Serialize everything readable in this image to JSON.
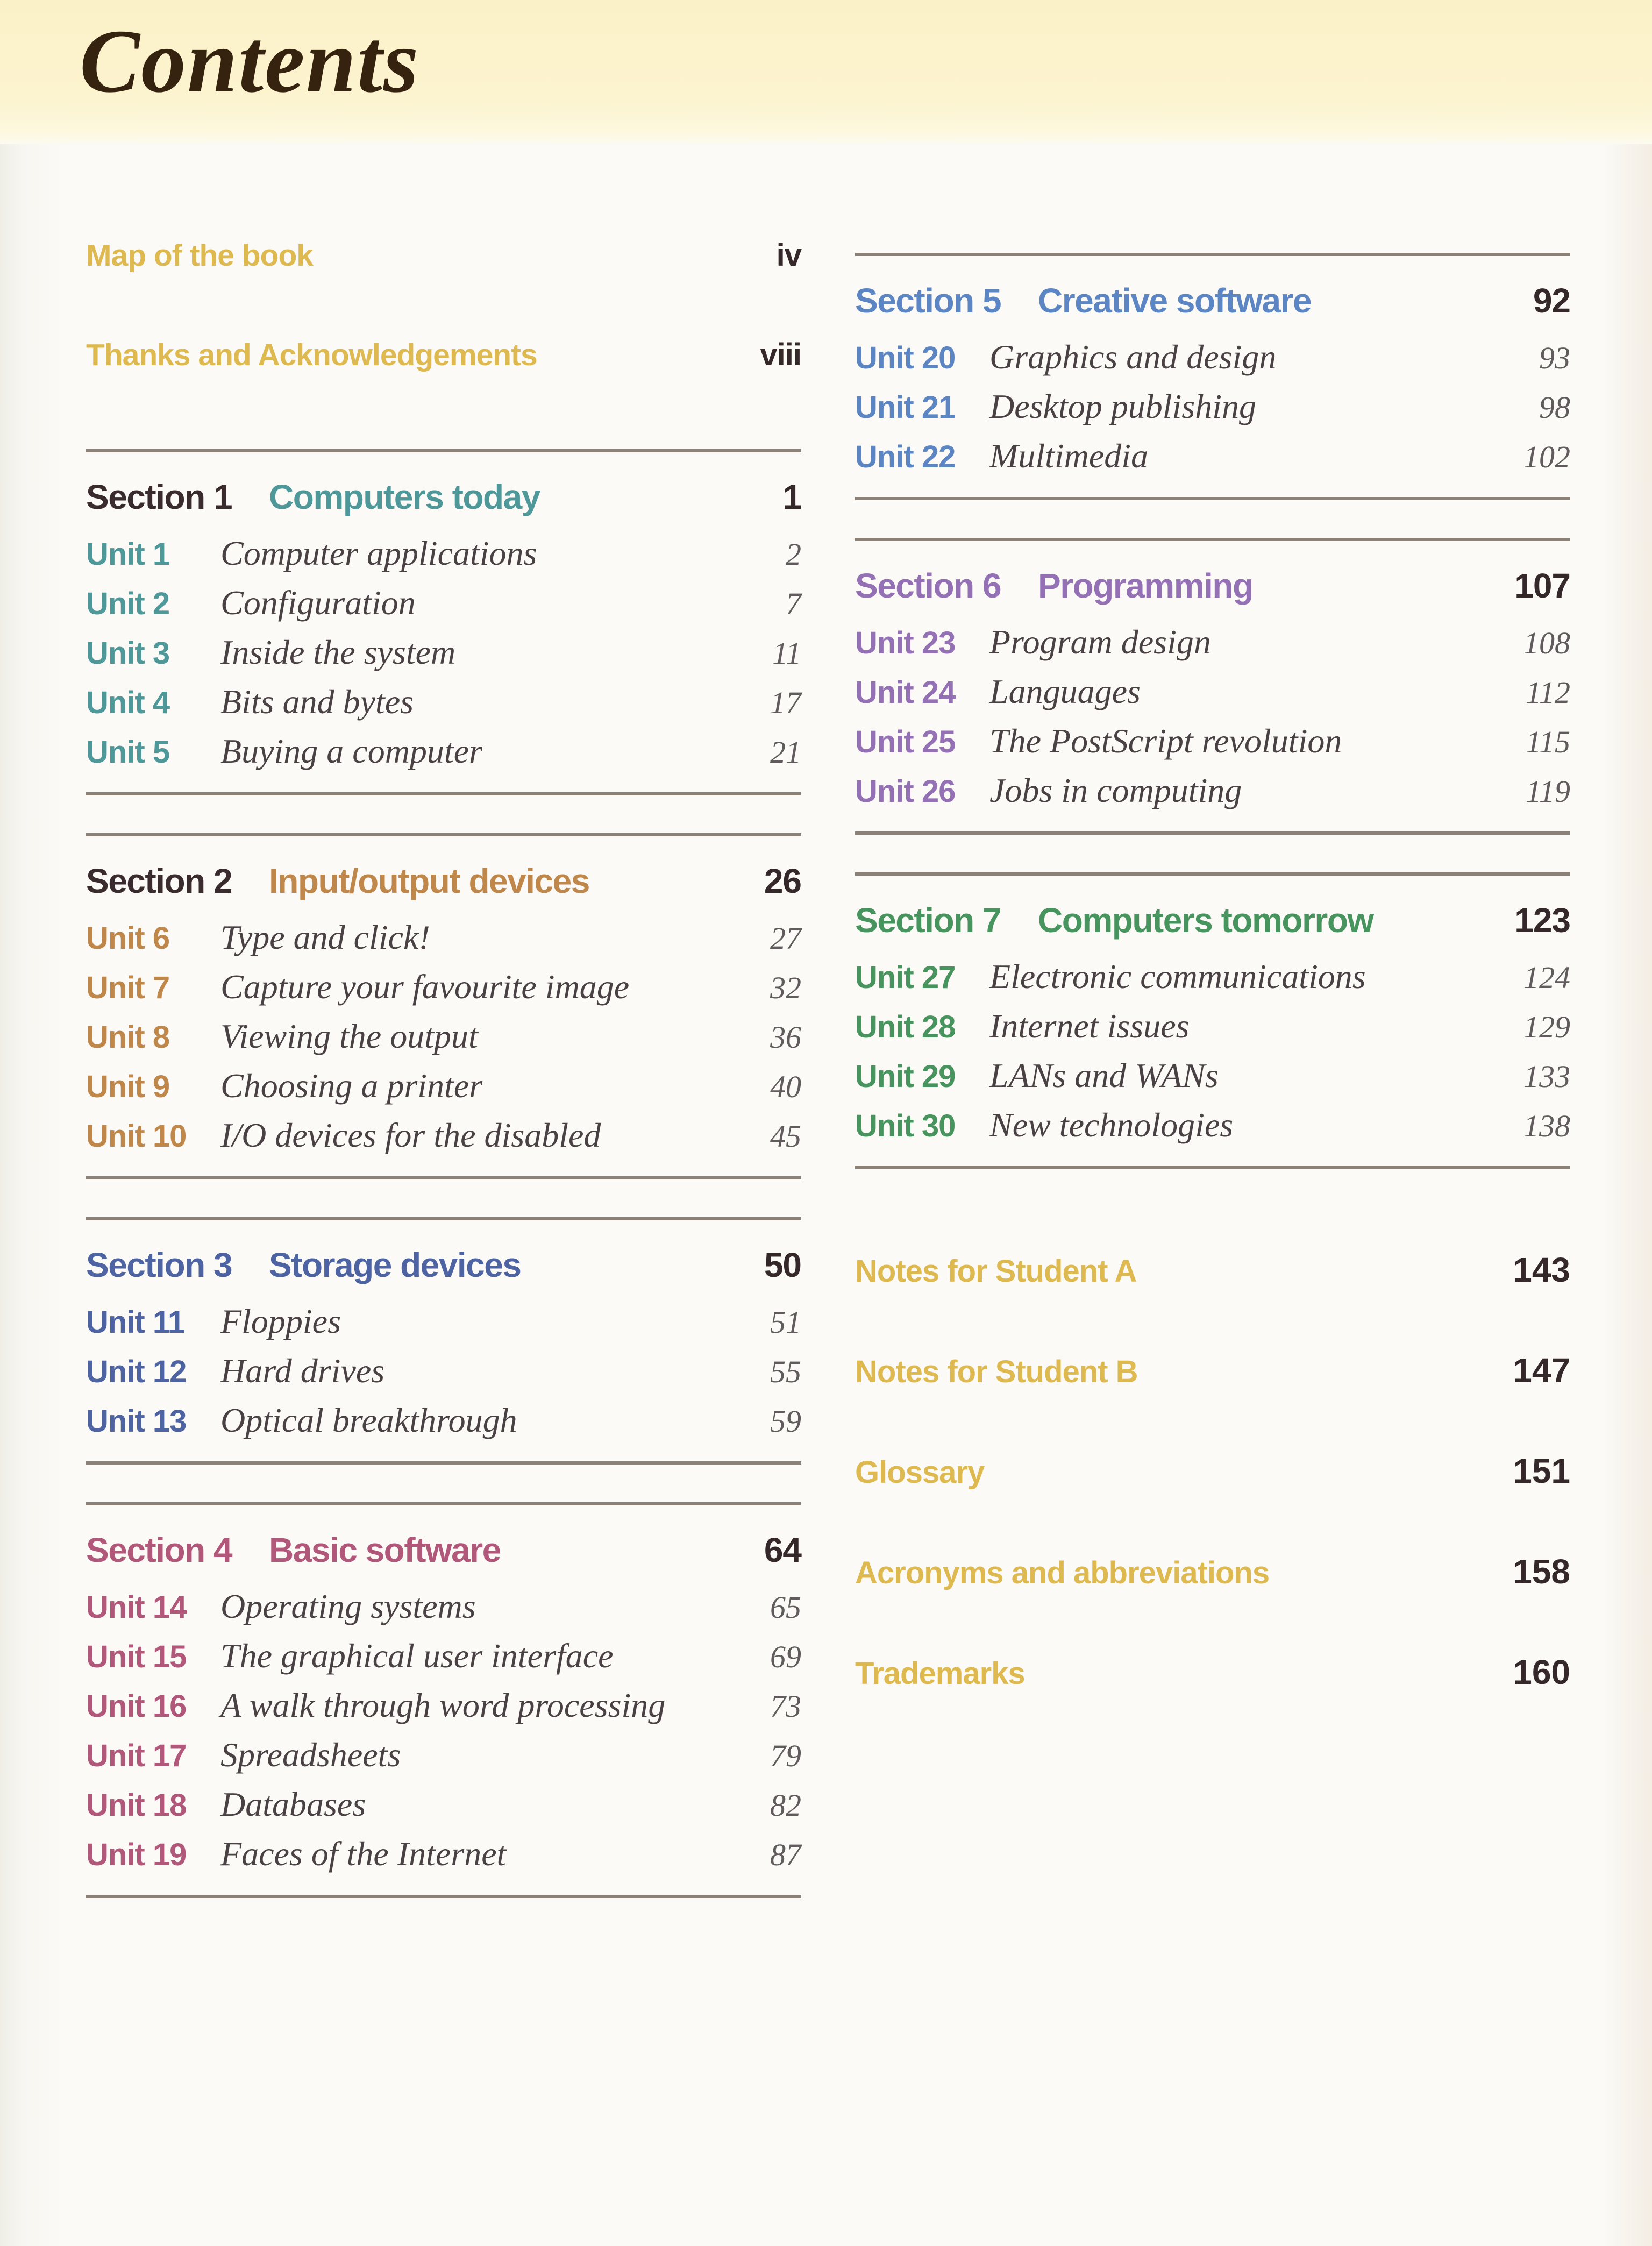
{
  "page_title": "Contents",
  "colors": {
    "title_ink": "#36230f",
    "gold": "#ddb94f",
    "dark_ink": "#35282a",
    "section_label_dark": "#3a2c2e",
    "unit_title_ink": "#4a4144",
    "unit_page_ink": "#615b5d",
    "rule": "#8b8177"
  },
  "front_matter": [
    {
      "label": "Map of the book",
      "page": "iv"
    },
    {
      "label": "Thanks and Acknowledgements",
      "page": "viii"
    }
  ],
  "sections": [
    {
      "name": "Section 1",
      "title": "Computers today",
      "page": "1",
      "color": "#4e989a",
      "name_color": "#3a2c2e",
      "units": [
        {
          "label": "Unit 1",
          "title": "Computer applications",
          "page": "2"
        },
        {
          "label": "Unit 2",
          "title": "Configuration",
          "page": "7"
        },
        {
          "label": "Unit 3",
          "title": "Inside the system",
          "page": "11"
        },
        {
          "label": "Unit 4",
          "title": "Bits and bytes",
          "page": "17"
        },
        {
          "label": "Unit 5",
          "title": "Buying a computer",
          "page": "21"
        }
      ]
    },
    {
      "name": "Section 2",
      "title": "Input/output devices",
      "page": "26",
      "color": "#c0874b",
      "name_color": "#3a2c2e",
      "units": [
        {
          "label": "Unit 6",
          "title": "Type and click!",
          "page": "27"
        },
        {
          "label": "Unit 7",
          "title": "Capture your favourite image",
          "page": "32"
        },
        {
          "label": "Unit 8",
          "title": "Viewing the output",
          "page": "36"
        },
        {
          "label": "Unit 9",
          "title": "Choosing a printer",
          "page": "40"
        },
        {
          "label": "Unit 10",
          "title": "I/O devices for the disabled",
          "page": "45"
        }
      ]
    },
    {
      "name": "Section 3",
      "title": "Storage devices",
      "page": "50",
      "color": "#4d63a2",
      "name_color": "#4d63a2",
      "units": [
        {
          "label": "Unit 11",
          "title": "Floppies",
          "page": "51"
        },
        {
          "label": "Unit 12",
          "title": "Hard drives",
          "page": "55"
        },
        {
          "label": "Unit 13",
          "title": "Optical breakthrough",
          "page": "59"
        }
      ]
    },
    {
      "name": "Section 4",
      "title": "Basic software",
      "page": "64",
      "color": "#b1577a",
      "name_color": "#b1577a",
      "units": [
        {
          "label": "Unit 14",
          "title": "Operating systems",
          "page": "65"
        },
        {
          "label": "Unit 15",
          "title": "The graphical user interface",
          "page": "69"
        },
        {
          "label": "Unit 16",
          "title": "A walk through word processing",
          "page": "73"
        },
        {
          "label": "Unit 17",
          "title": "Spreadsheets",
          "page": "79"
        },
        {
          "label": "Unit 18",
          "title": "Databases",
          "page": "82"
        },
        {
          "label": "Unit 19",
          "title": "Faces of the Internet",
          "page": "87"
        }
      ]
    },
    {
      "name": "Section 5",
      "title": "Creative software",
      "page": "92",
      "color": "#5c85c3",
      "name_color": "#5c85c3",
      "units": [
        {
          "label": "Unit 20",
          "title": "Graphics and design",
          "page": "93"
        },
        {
          "label": "Unit 21",
          "title": "Desktop publishing",
          "page": "98"
        },
        {
          "label": "Unit 22",
          "title": "Multimedia",
          "page": "102"
        }
      ]
    },
    {
      "name": "Section 6",
      "title": "Programming",
      "page": "107",
      "color": "#9471b5",
      "name_color": "#9471b5",
      "units": [
        {
          "label": "Unit 23",
          "title": "Program design",
          "page": "108"
        },
        {
          "label": "Unit 24",
          "title": "Languages",
          "page": "112"
        },
        {
          "label": "Unit 25",
          "title": "The PostScript revolution",
          "page": "115"
        },
        {
          "label": "Unit 26",
          "title": "Jobs in computing",
          "page": "119"
        }
      ]
    },
    {
      "name": "Section 7",
      "title": "Computers tomorrow",
      "page": "123",
      "color": "#48945f",
      "name_color": "#48945f",
      "units": [
        {
          "label": "Unit 27",
          "title": "Electronic communications",
          "page": "124"
        },
        {
          "label": "Unit 28",
          "title": "Internet issues",
          "page": "129"
        },
        {
          "label": "Unit 29",
          "title": "LANs and WANs",
          "page": "133"
        },
        {
          "label": "Unit 30",
          "title": "New technologies",
          "page": "138"
        }
      ]
    }
  ],
  "back_matter": [
    {
      "label": "Notes for Student A",
      "page": "143"
    },
    {
      "label": "Notes for Student B",
      "page": "147"
    },
    {
      "label": "Glossary",
      "page": "151"
    },
    {
      "label": "Acronyms and abbreviations",
      "page": "158"
    },
    {
      "label": "Trademarks",
      "page": "160"
    }
  ]
}
